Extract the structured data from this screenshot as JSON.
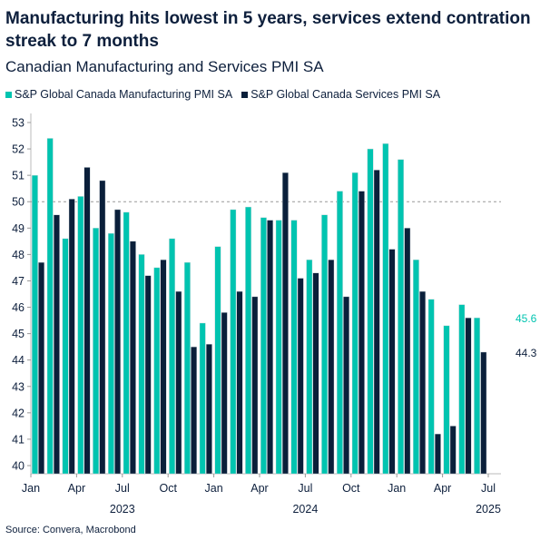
{
  "title": "Manufacturing hits lowest in 5 years, services extend contration streak to 7 months",
  "subtitle": "Canadian Manufacturing and Services PMI SA",
  "source": "Source: Convera, Macrobond",
  "colors": {
    "manufacturing": "#00c4b0",
    "services": "#0a1f3a",
    "reference_line": "#999999"
  },
  "chart_data": {
    "type": "bar",
    "title": "Manufacturing hits lowest in 5 years, services extend contration streak to 7 months",
    "subtitle": "Canadian Manufacturing and Services PMI SA",
    "categories": [
      "2023-01",
      "2023-02",
      "2023-03",
      "2023-04",
      "2023-05",
      "2023-06",
      "2023-07",
      "2023-08",
      "2023-09",
      "2023-10",
      "2023-11",
      "2023-12",
      "2024-01",
      "2024-02",
      "2024-03",
      "2024-04",
      "2024-05",
      "2024-06",
      "2024-07",
      "2024-08",
      "2024-09",
      "2024-10",
      "2024-11",
      "2024-12",
      "2025-01",
      "2025-02",
      "2025-03",
      "2025-04",
      "2025-05",
      "2025-06"
    ],
    "series": [
      {
        "name": "S&P Global Canada Manufacturing PMI SA",
        "values": [
          51.0,
          52.4,
          48.6,
          50.2,
          49.0,
          48.8,
          49.6,
          48.0,
          47.5,
          48.6,
          47.7,
          45.4,
          48.3,
          49.7,
          49.8,
          49.4,
          49.3,
          49.3,
          47.8,
          49.5,
          50.4,
          51.1,
          52.0,
          52.2,
          51.6,
          47.8,
          46.3,
          45.3,
          46.1,
          45.6
        ]
      },
      {
        "name": "S&P Global Canada Services PMI SA",
        "values": [
          47.7,
          49.5,
          50.1,
          51.3,
          50.8,
          49.7,
          48.5,
          47.2,
          47.8,
          46.6,
          44.5,
          44.6,
          45.8,
          46.6,
          46.4,
          49.3,
          51.1,
          47.1,
          47.3,
          47.8,
          46.4,
          50.4,
          51.2,
          48.2,
          49.0,
          46.6,
          41.2,
          41.5,
          45.6,
          44.3
        ]
      }
    ],
    "last_value_labels": [
      "45.6",
      "44.3"
    ],
    "reference_line": 50,
    "ylim": [
      40,
      53
    ],
    "yticks": [
      "40",
      "41",
      "42",
      "43",
      "44",
      "45",
      "46",
      "47",
      "48",
      "49",
      "50",
      "51",
      "52",
      "53"
    ],
    "xticks": [
      "Jan",
      "Apr",
      "Jul",
      "Oct",
      "Jan",
      "Apr",
      "Jul",
      "Oct",
      "Jan",
      "Apr",
      "Jul"
    ],
    "year_labels": [
      "2023",
      "2024",
      "2025"
    ],
    "legend": "top-left",
    "grid": false
  }
}
